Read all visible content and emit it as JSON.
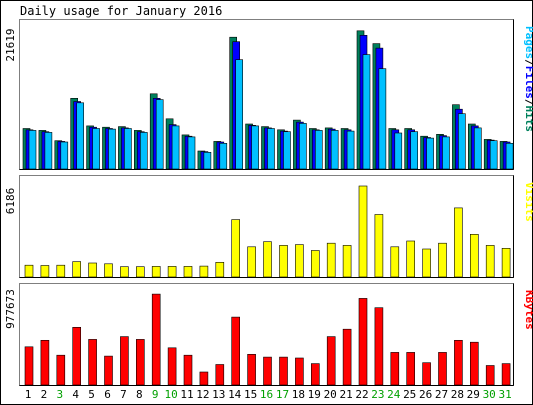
{
  "chart_data": {
    "type": "bar",
    "title": "Daily usage for January 2016",
    "x": [
      "1",
      "2",
      "3",
      "4",
      "5",
      "6",
      "7",
      "8",
      "9",
      "10",
      "11",
      "12",
      "13",
      "14",
      "15",
      "16",
      "17",
      "18",
      "19",
      "20",
      "21",
      "22",
      "23",
      "24",
      "25",
      "26",
      "27",
      "28",
      "29",
      "30",
      "31"
    ],
    "weekend_days": [
      "3",
      "9",
      "10",
      "16",
      "17",
      "23",
      "24",
      "30",
      "31"
    ],
    "colors": {
      "hits": "#00805c",
      "files": "#0000ff",
      "pages": "#00c0ff",
      "visits": "#ffff00",
      "kbytes": "#ff0000",
      "weekend_label": "#00a000",
      "weekday_label": "#000000"
    },
    "panels": [
      {
        "id": "top",
        "max_label": "21619",
        "ymax": 21619,
        "legend": [
          "Pages",
          "/",
          "Files",
          "/",
          "Hits"
        ],
        "legend_colors": [
          "#00c0ff",
          "#000000",
          "#0000ff",
          "#000000",
          "#00805c"
        ],
        "series": [
          {
            "name": "Hits",
            "values": [
              6300,
              6000,
              4400,
              11000,
              6700,
              6500,
              6600,
              6000,
              11700,
              7800,
              5300,
              2800,
              4300,
              20500,
              7000,
              6600,
              6100,
              7600,
              6300,
              6400,
              6300,
              21500,
              19500,
              6300,
              6300,
              5100,
              5400,
              10000,
              7000,
              4600,
              4300
            ]
          },
          {
            "name": "Files",
            "values": [
              6100,
              5800,
              4300,
              10500,
              6500,
              6300,
              6400,
              5800,
              11000,
              6900,
              5100,
              2700,
              4200,
              19800,
              6800,
              6400,
              5900,
              7300,
              6100,
              6200,
              6100,
              20800,
              18800,
              6100,
              6100,
              4900,
              5200,
              9300,
              6700,
              4500,
              4200
            ]
          },
          {
            "name": "Pages",
            "values": [
              6000,
              5700,
              4200,
              10300,
              6300,
              6200,
              6300,
              5700,
              10800,
              6700,
              5000,
              2600,
              4000,
              17000,
              6700,
              6300,
              5800,
              7100,
              6000,
              6000,
              5900,
              17800,
              15600,
              5600,
              5800,
              4800,
              5000,
              8600,
              6400,
              4400,
              4000
            ]
          }
        ]
      },
      {
        "id": "mid",
        "max_label": "6186",
        "ymax": 6186,
        "legend": [
          "Visits"
        ],
        "legend_colors": [
          "#ffff00"
        ],
        "series": [
          {
            "name": "Visits",
            "values": [
              800,
              780,
              800,
              1050,
              950,
              900,
              700,
              700,
              720,
              720,
              720,
              740,
              1000,
              3900,
              2050,
              2400,
              2150,
              2200,
              1800,
              2300,
              2150,
              6186,
              4250,
              2050,
              2450,
              1900,
              2300,
              4700,
              2900,
              2150,
              1950
            ]
          }
        ]
      },
      {
        "id": "bottom",
        "max_label": "977673",
        "ymax": 977673,
        "legend": [
          "KBytes"
        ],
        "legend_colors": [
          "#ff0000"
        ],
        "series": [
          {
            "name": "KBytes",
            "values": [
              410000,
              480000,
              320000,
              620000,
              490000,
              310000,
              520000,
              490000,
              977000,
              400000,
              320000,
              140000,
              220000,
              730000,
              330000,
              300000,
              300000,
              290000,
              230000,
              520000,
              600000,
              930000,
              830000,
              350000,
              350000,
              240000,
              350000,
              480000,
              460000,
              210000,
              230000
            ]
          }
        ]
      }
    ]
  }
}
